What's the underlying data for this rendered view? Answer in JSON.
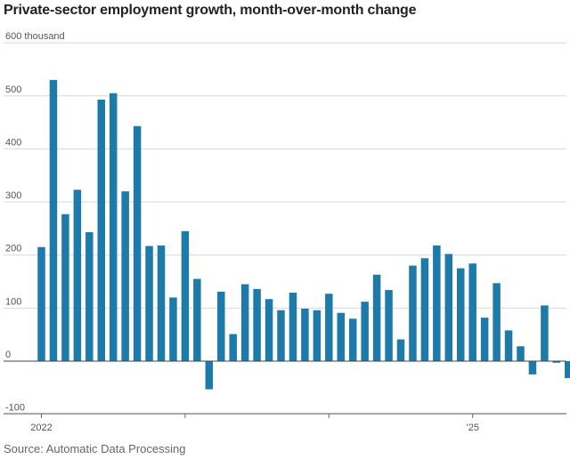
{
  "header": {
    "title": "Private-sector employment growth, month-over-month change"
  },
  "footer": {
    "source": "Source: Automatic Data Processing"
  },
  "colors": {
    "bar": "#1d7aa9",
    "grid": "#d8d8d8",
    "zero": "#444444"
  },
  "chart_data": {
    "type": "bar",
    "title": "Private-sector employment growth, month-over-month change",
    "ylabel": "thousand",
    "ylim": [
      -100,
      600
    ],
    "yticks": [
      -100,
      0,
      100,
      200,
      300,
      400,
      500,
      600
    ],
    "ytick_labels": [
      "-100",
      "0",
      "100",
      "200",
      "300",
      "400",
      "500",
      "600 thousand"
    ],
    "grid": true,
    "categories": [
      "2022-01",
      "2022-02",
      "2022-03",
      "2022-04",
      "2022-05",
      "2022-06",
      "2022-07",
      "2022-08",
      "2022-09",
      "2022-10",
      "2022-11",
      "2022-12",
      "2023-01",
      "2023-02",
      "2023-03",
      "2023-04",
      "2023-05",
      "2023-06",
      "2023-07",
      "2023-08",
      "2023-09",
      "2023-10",
      "2023-11",
      "2023-12",
      "2024-01",
      "2024-02",
      "2024-03",
      "2024-04",
      "2024-05",
      "2024-06",
      "2024-07",
      "2024-08",
      "2024-09",
      "2024-10",
      "2024-11",
      "2024-12",
      "2025-01",
      "2025-02",
      "2025-03",
      "2025-04",
      "2025-05",
      "2025-06",
      "2025-07",
      "2025-08",
      "2025-09"
    ],
    "values": [
      215,
      530,
      277,
      323,
      243,
      493,
      505,
      320,
      443,
      217,
      218,
      120,
      245,
      155,
      -53,
      131,
      51,
      145,
      136,
      117,
      96,
      129,
      99,
      96,
      127,
      91,
      80,
      112,
      163,
      134,
      41,
      180,
      194,
      218,
      202,
      175,
      184,
      82,
      147,
      58,
      28,
      -25,
      105,
      -3,
      -32
    ],
    "xtick_positions": [
      "2022-01",
      "2023-01",
      "2024-01",
      "2025-01",
      "2026-01"
    ],
    "xtick_labels": [
      "2022",
      "",
      "",
      "’25",
      ""
    ]
  }
}
